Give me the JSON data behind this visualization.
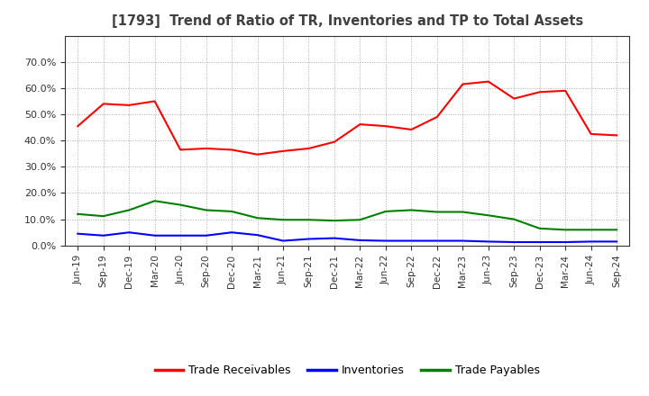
{
  "title": "[1793]  Trend of Ratio of TR, Inventories and TP to Total Assets",
  "labels": [
    "Jun-19",
    "Sep-19",
    "Dec-19",
    "Mar-20",
    "Jun-20",
    "Sep-20",
    "Dec-20",
    "Mar-21",
    "Jun-21",
    "Sep-21",
    "Dec-21",
    "Mar-22",
    "Jun-22",
    "Sep-22",
    "Dec-22",
    "Mar-23",
    "Jun-23",
    "Sep-23",
    "Dec-23",
    "Mar-24",
    "Jun-24",
    "Sep-24"
  ],
  "trade_receivables": [
    0.455,
    0.54,
    0.535,
    0.55,
    0.365,
    0.37,
    0.365,
    0.347,
    0.36,
    0.37,
    0.395,
    0.462,
    0.455,
    0.442,
    0.49,
    0.615,
    0.625,
    0.56,
    0.585,
    0.59,
    0.425,
    0.42
  ],
  "inventories": [
    0.045,
    0.038,
    0.05,
    0.038,
    0.038,
    0.038,
    0.05,
    0.04,
    0.018,
    0.025,
    0.028,
    0.02,
    0.018,
    0.018,
    0.018,
    0.018,
    0.015,
    0.013,
    0.013,
    0.013,
    0.015,
    0.015
  ],
  "trade_payables": [
    0.12,
    0.112,
    0.135,
    0.17,
    0.155,
    0.135,
    0.13,
    0.105,
    0.098,
    0.098,
    0.095,
    0.098,
    0.13,
    0.135,
    0.128,
    0.128,
    0.115,
    0.1,
    0.065,
    0.06,
    0.06,
    0.06
  ],
  "tr_color": "#FF0000",
  "inv_color": "#0000FF",
  "tp_color": "#008000",
  "background_color": "#FFFFFF",
  "grid_color": "#AAAAAA",
  "title_color": "#404040",
  "ylim": [
    0.0,
    0.8
  ],
  "yticks": [
    0.0,
    0.1,
    0.2,
    0.3,
    0.4,
    0.5,
    0.6,
    0.7
  ],
  "legend_labels": [
    "Trade Receivables",
    "Inventories",
    "Trade Payables"
  ]
}
